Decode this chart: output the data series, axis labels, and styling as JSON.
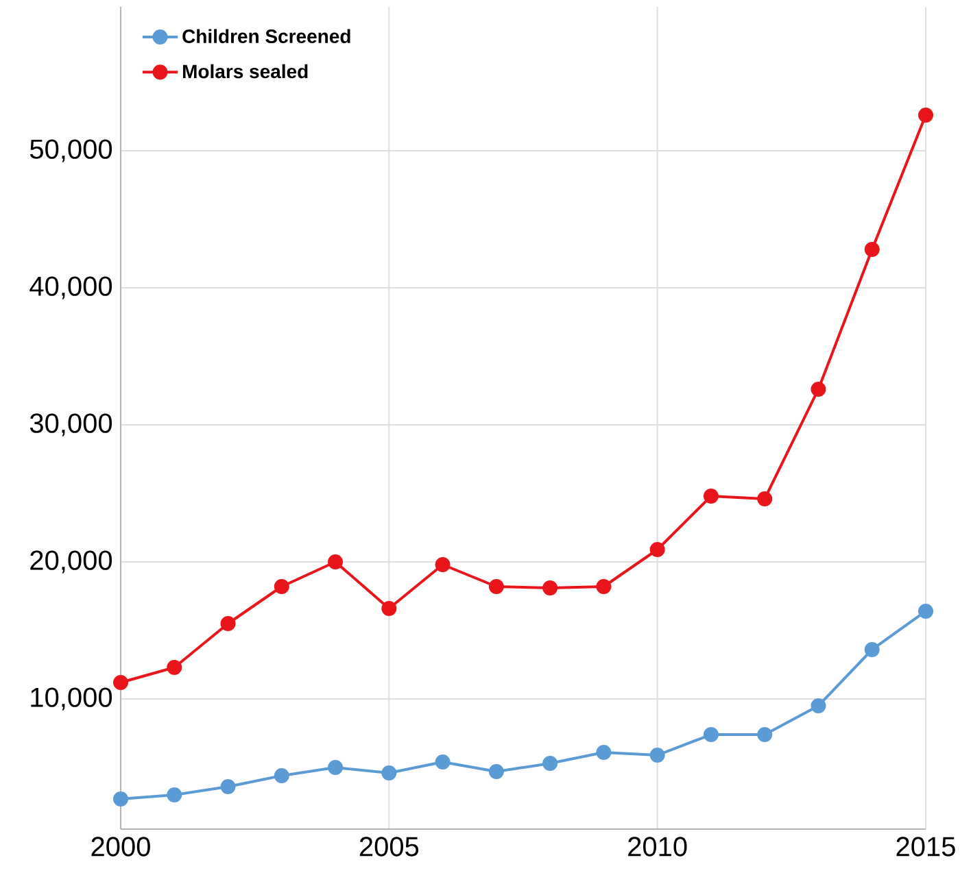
{
  "chart_data": {
    "type": "line",
    "x": [
      2000,
      2001,
      2002,
      2003,
      2004,
      2005,
      2006,
      2007,
      2008,
      2009,
      2010,
      2011,
      2012,
      2013,
      2014,
      2015
    ],
    "series": [
      {
        "name": "Children Screened",
        "color": "#5b9bd5",
        "values": [
          2700,
          3000,
          3600,
          4400,
          5000,
          4600,
          5400,
          4700,
          5300,
          6100,
          5900,
          7400,
          7400,
          9500,
          13600,
          16400
        ]
      },
      {
        "name": "Molars sealed",
        "color": "#e8151b",
        "values": [
          11200,
          12300,
          15500,
          18200,
          20000,
          16600,
          19800,
          18200,
          18100,
          18200,
          20900,
          24800,
          24600,
          32600,
          42800,
          52600
        ]
      }
    ],
    "xlim": [
      2000,
      2015
    ],
    "xticks": [
      2000,
      2005,
      2010,
      2015
    ],
    "ylim": [
      500,
      60500
    ],
    "yticks": [
      {
        "value": 10000,
        "label": "10,000"
      },
      {
        "value": 20000,
        "label": "20,000"
      },
      {
        "value": 30000,
        "label": "30,000"
      },
      {
        "value": 40000,
        "label": "40,000"
      },
      {
        "value": 50000,
        "label": "50,000"
      }
    ],
    "grid": true,
    "legend": "top left",
    "marker": "circle",
    "line_style": "solid"
  }
}
